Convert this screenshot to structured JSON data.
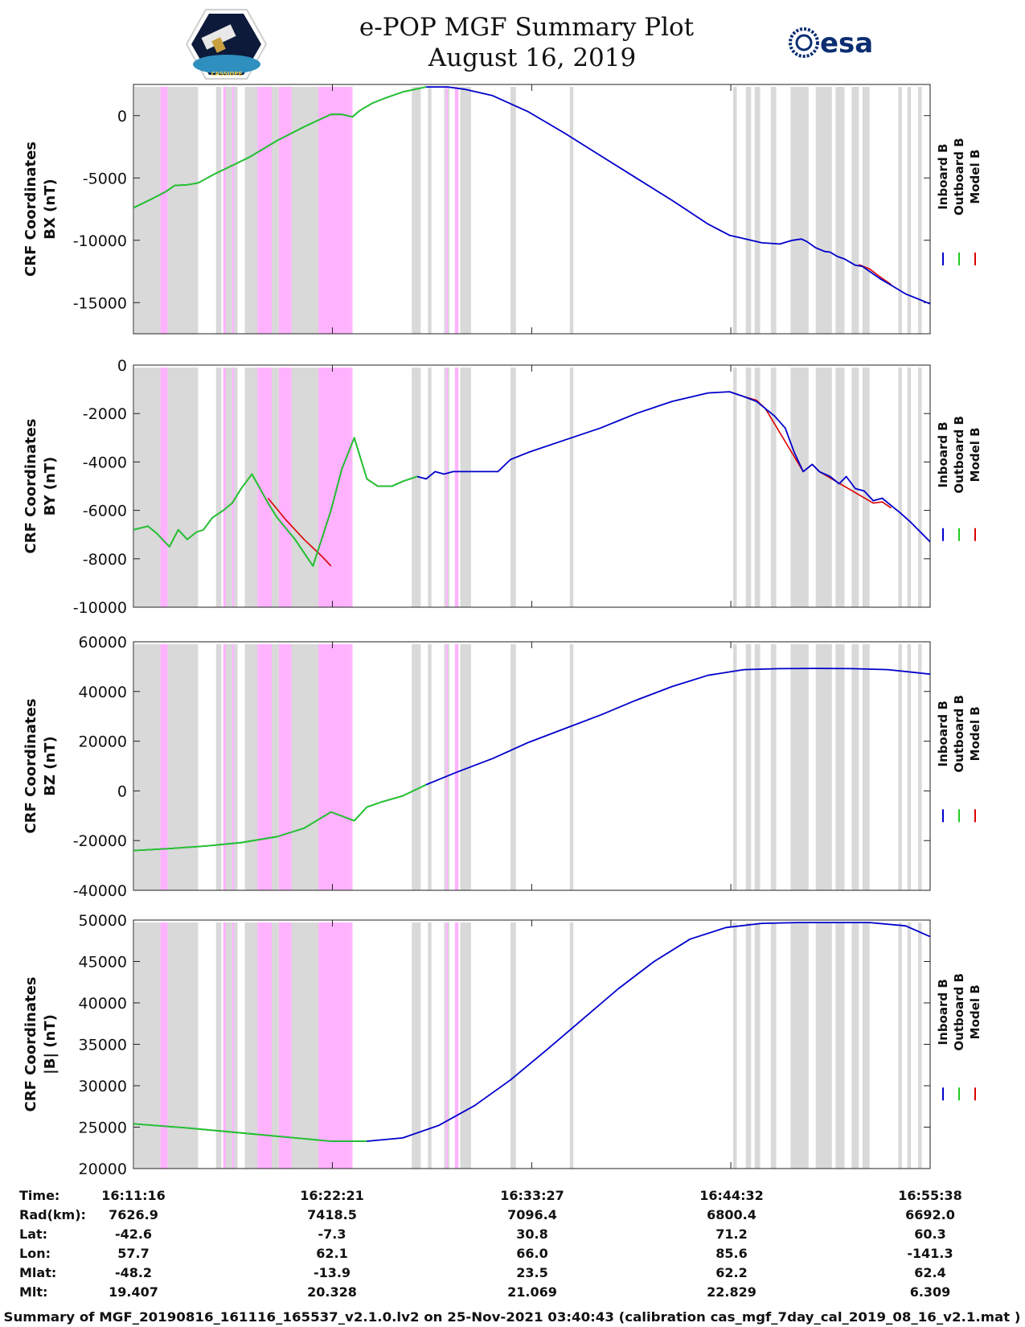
{
  "header": {
    "title_line1": "e-POP MGF Summary Plot",
    "title_line2": "August 16, 2019",
    "left_logo": "CASSIOPE",
    "right_logo": "esa"
  },
  "colors": {
    "inboard": "#0000cc",
    "outboard": "#22cc22",
    "model": "#dd0000",
    "gray_band": "#d9d9d9",
    "pink_band": "#ffb3ff"
  },
  "legend": {
    "inboard": "Inboard B",
    "outboard": "Outboard B",
    "model": "Model B"
  },
  "chart_data": {
    "type": "line",
    "x_range_min": [
      0,
      44.37
    ],
    "x_ticks_min": [
      0,
      11.08,
      22.18,
      33.27,
      44.37
    ],
    "x_tick_labels": [
      "16:11:16",
      "16:22:21",
      "16:33:27",
      "16:44:32",
      "16:55:38"
    ],
    "green_until_min": 16.3,
    "gray_bands_min": [
      [
        0.05,
        1.5
      ],
      [
        1.9,
        3.6
      ],
      [
        4.6,
        4.9
      ],
      [
        5.15,
        5.5
      ],
      [
        5.6,
        5.8
      ],
      [
        6.2,
        6.9
      ],
      [
        7.7,
        8.1
      ],
      [
        8.8,
        10.3
      ],
      [
        10.3,
        12.1
      ],
      [
        15.5,
        16.0
      ],
      [
        16.4,
        16.6
      ],
      [
        17.3,
        17.6
      ],
      [
        18.2,
        18.8
      ],
      [
        21.0,
        21.3
      ],
      [
        24.3,
        24.5
      ],
      [
        33.4,
        33.6
      ],
      [
        34.1,
        34.4
      ],
      [
        34.6,
        34.9
      ],
      [
        35.5,
        35.8
      ],
      [
        36.6,
        37.6
      ],
      [
        38.0,
        38.9
      ],
      [
        39.1,
        39.6
      ],
      [
        40.0,
        40.4
      ],
      [
        40.6,
        41.0
      ],
      [
        42.6,
        42.8
      ],
      [
        43.1,
        43.3
      ],
      [
        43.7,
        43.9
      ]
    ],
    "pink_bands_min": [
      [
        1.5,
        1.9
      ],
      [
        5.0,
        5.15
      ],
      [
        5.5,
        5.6
      ],
      [
        6.9,
        7.0
      ],
      [
        7.0,
        7.7
      ],
      [
        8.1,
        8.8
      ],
      [
        10.3,
        12.1
      ],
      [
        12.1,
        12.2
      ],
      [
        17.4,
        17.5
      ],
      [
        17.9,
        18.1
      ]
    ],
    "panels": [
      {
        "name": "BX",
        "ylabel_line1": "CRF Coordinates",
        "ylabel_line2": "BX (nT)",
        "ylim": [
          -17500,
          2500
        ],
        "yticks": [
          -15000,
          -10000,
          -5000,
          0
        ],
        "series": {
          "inboard_x": [
            0,
            1,
            1.8,
            2.3,
            3.0,
            3.6,
            4.5,
            5.5,
            6.5,
            8.0,
            9.5,
            11.0,
            11.6,
            12.2,
            12.6,
            13.3,
            14.0,
            15.0,
            16.3,
            17.5,
            18.5,
            20,
            22,
            24,
            26,
            28,
            30,
            32,
            33.2,
            33.8,
            35,
            36,
            36.7,
            37.2,
            37.5,
            38.0,
            38.5,
            38.8,
            39.2,
            39.6,
            40.2,
            40.6,
            41.2,
            41.6,
            42.2,
            43,
            44.37
          ],
          "inboard_y": [
            -7400,
            -6700,
            -6100,
            -5600,
            -5550,
            -5400,
            -4700,
            -4000,
            -3300,
            -2000,
            -900,
            100,
            100,
            -100,
            400,
            1000,
            1400,
            1900,
            2300,
            2300,
            2100,
            1600,
            300,
            -1400,
            -3200,
            -5000,
            -6800,
            -8700,
            -9600,
            -9800,
            -10200,
            -10300,
            -10000,
            -9900,
            -10100,
            -10600,
            -10900,
            -10950,
            -11300,
            -11500,
            -12000,
            -12100,
            -12700,
            -13100,
            -13600,
            -14300,
            -15100
          ],
          "outboard_x": [
            0,
            1,
            1.8,
            2.3,
            3.0,
            3.6,
            4.5,
            5.5,
            6.5,
            8.0,
            9.5,
            11.0,
            11.6,
            12.2,
            12.6,
            13.3,
            14.0,
            15.0,
            16.3
          ],
          "outboard_y": [
            -7400,
            -6700,
            -6100,
            -5600,
            -5550,
            -5400,
            -4700,
            -4000,
            -3300,
            -2000,
            -900,
            100,
            100,
            -100,
            400,
            1000,
            1400,
            1900,
            2300
          ],
          "model_x": [
            40.4,
            41.0,
            41.6,
            42.2
          ],
          "model_y": [
            -11950,
            -12300,
            -12950,
            -13550
          ]
        }
      },
      {
        "name": "BY",
        "ylabel_line1": "CRF Coordinates",
        "ylabel_line2": "BY (nT)",
        "ylim": [
          -10000,
          0
        ],
        "yticks": [
          -10000,
          -8000,
          -6000,
          -4000,
          -2000,
          0
        ],
        "series": {
          "inboard_x": [
            0,
            0.8,
            1.3,
            2.0,
            2.5,
            3.0,
            3.5,
            3.9,
            4.4,
            5.0,
            5.5,
            6.0,
            6.6,
            7.5,
            8.0,
            9.0,
            10.0,
            11.0,
            11.6,
            12.3,
            13.0,
            13.6,
            14.4,
            15.0,
            15.8,
            16.3,
            16.8,
            17.3,
            17.8,
            18.5,
            19.5,
            20.3,
            21.0,
            22,
            24,
            26,
            28,
            30,
            32,
            33.2,
            34,
            34.7,
            35.2,
            35.7,
            36.3,
            36.8,
            37.3,
            37.8,
            38.2,
            38.8,
            39.3,
            39.7,
            40.2,
            40.7,
            41.2,
            41.7,
            42.2,
            42.7,
            43.3,
            44.37
          ],
          "inboard_y": [
            -6800,
            -6650,
            -6950,
            -7500,
            -6800,
            -7200,
            -6900,
            -6800,
            -6300,
            -6000,
            -5700,
            -5100,
            -4500,
            -5700,
            -6300,
            -7200,
            -8300,
            -6000,
            -4300,
            -3000,
            -4700,
            -5000,
            -5000,
            -4800,
            -4600,
            -4700,
            -4400,
            -4500,
            -4400,
            -4400,
            -4400,
            -4400,
            -3900,
            -3600,
            -3100,
            -2600,
            -2000,
            -1500,
            -1150,
            -1100,
            -1300,
            -1500,
            -1800,
            -2100,
            -2600,
            -3600,
            -4400,
            -4100,
            -4400,
            -4600,
            -4900,
            -4600,
            -5100,
            -5200,
            -5600,
            -5500,
            -5800,
            -6100,
            -6500,
            -7300
          ],
          "outboard_x": [
            0,
            0.8,
            1.3,
            2.0,
            2.5,
            3.0,
            3.5,
            3.9,
            4.4,
            5.0,
            5.5,
            6.0,
            6.6,
            7.5,
            8.0,
            9.0,
            10.0,
            11.0,
            11.6,
            12.3,
            13.0,
            13.6,
            14.4,
            15.0,
            15.8
          ],
          "outboard_y": [
            -6800,
            -6650,
            -6950,
            -7500,
            -6800,
            -7200,
            -6900,
            -6800,
            -6300,
            -6000,
            -5700,
            -5100,
            -4500,
            -5700,
            -6300,
            -7200,
            -8300,
            -6000,
            -4300,
            -3000,
            -4700,
            -5000,
            -5000,
            -4800,
            -4600
          ],
          "model_x": [
            7.5,
            8.5,
            9.5,
            10.5,
            11.0
          ],
          "model_y": [
            -5500,
            -6400,
            -7200,
            -7900,
            -8300
          ],
          "model2_x": [
            33.2,
            34,
            34.7,
            35.2,
            37.3,
            37.8,
            38.2,
            41.2,
            41.7,
            42.2
          ],
          "model2_y": [
            -1100,
            -1300,
            -1450,
            -1800,
            -4400,
            -4100,
            -4400,
            -5700,
            -5650,
            -5900
          ]
        }
      },
      {
        "name": "BZ",
        "ylabel_line1": "CRF Coordinates",
        "ylabel_line2": "BZ (nT)",
        "ylim": [
          -40000,
          60000
        ],
        "yticks": [
          -40000,
          -20000,
          0,
          20000,
          40000,
          60000
        ],
        "series": {
          "inboard_x": [
            0,
            2,
            4,
            6,
            8,
            9.5,
            11.0,
            12.3,
            13.0,
            13.8,
            15,
            16.3,
            18,
            20,
            22,
            24,
            26,
            28,
            30,
            32,
            34,
            36,
            38,
            40,
            42,
            44.37
          ],
          "inboard_y": [
            -24000,
            -23200,
            -22200,
            -20800,
            -18400,
            -15000,
            -8500,
            -12000,
            -6500,
            -4500,
            -2000,
            2500,
            7500,
            13000,
            19500,
            25000,
            30500,
            36500,
            42000,
            46500,
            48800,
            49200,
            49300,
            49200,
            48800,
            47000
          ],
          "outboard_x": [
            0,
            2,
            4,
            6,
            8,
            9.5,
            11.0,
            12.3,
            13.0,
            13.8,
            15,
            16.3
          ],
          "outboard_y": [
            -24000,
            -23200,
            -22200,
            -20800,
            -18400,
            -15000,
            -8500,
            -12000,
            -6500,
            -4500,
            -2000,
            2500
          ]
        }
      },
      {
        "name": "|B|",
        "ylabel_line1": "CRF Coordinates",
        "ylabel_line2": "|B| (nT)",
        "ylim": [
          20000,
          50000
        ],
        "yticks": [
          20000,
          25000,
          30000,
          35000,
          40000,
          45000,
          50000
        ],
        "series": {
          "inboard_x": [
            0,
            3,
            6,
            9,
            11,
            13,
            15,
            17,
            19,
            21,
            23,
            25,
            27,
            29,
            31,
            33,
            35,
            37,
            39,
            41,
            43,
            44.37
          ],
          "inboard_y": [
            25400,
            24900,
            24300,
            23700,
            23300,
            23300,
            23700,
            25200,
            27600,
            30700,
            34300,
            38000,
            41700,
            45000,
            47700,
            49100,
            49600,
            49700,
            49700,
            49700,
            49300,
            48000
          ],
          "outboard_x": [
            0,
            3,
            6,
            9,
            11,
            13
          ],
          "outboard_y": [
            25400,
            24900,
            24300,
            23700,
            23300,
            23300
          ]
        }
      }
    ]
  },
  "info_table": {
    "row_labels": [
      "Time:",
      "Rad(km):",
      "Lat:",
      "Lon:",
      "Mlat:",
      "Mlt:"
    ],
    "columns": [
      [
        "16:11:16",
        "7626.9",
        "-42.6",
        "57.7",
        "-48.2",
        "19.407"
      ],
      [
        "16:22:21",
        "7418.5",
        "-7.3",
        "62.1",
        "-13.9",
        "20.328"
      ],
      [
        "16:33:27",
        "7096.4",
        "30.8",
        "66.0",
        "23.5",
        "21.069"
      ],
      [
        "16:44:32",
        "6800.4",
        "71.2",
        "85.6",
        "62.2",
        "22.829"
      ],
      [
        "16:55:38",
        "6692.0",
        "60.3",
        "-141.3",
        "62.4",
        "6.309"
      ]
    ]
  },
  "footer": "Summary of MGF_20190816_161116_165537_v2.1.0.lv2 on 25-Nov-2021 03:40:43 (calibration cas_mgf_7day_cal_2019_08_16_v2.1.mat )"
}
